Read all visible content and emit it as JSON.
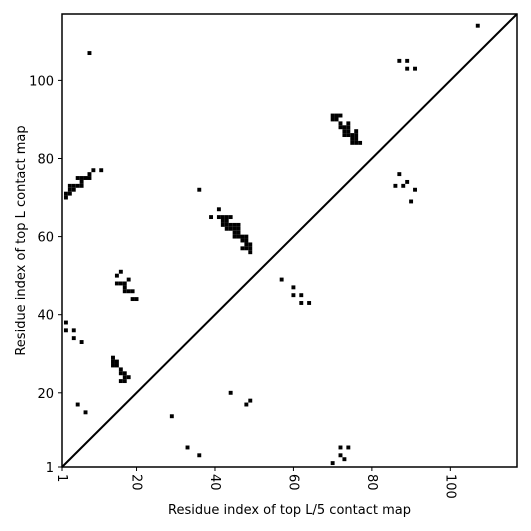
{
  "chart_data": {
    "type": "scatter",
    "xlabel": "Residue index of top L/5 contact map",
    "ylabel": "Residue index of top L contact map",
    "xlim": [
      1,
      117
    ],
    "ylim": [
      1,
      117
    ],
    "xticks": [
      1,
      20,
      40,
      60,
      80,
      100
    ],
    "xtick_labels": [
      "1",
      "20",
      "40",
      "60",
      "80",
      "100"
    ],
    "yticks": [
      1,
      20,
      40,
      60,
      80,
      100
    ],
    "ytick_labels": [
      "1",
      "20",
      "40",
      "60",
      "80",
      "100"
    ],
    "diagonal_line": true,
    "marker": "square",
    "marker_color": "#000000",
    "points": [
      [
        107,
        114
      ],
      [
        8,
        107
      ],
      [
        87,
        105
      ],
      [
        89,
        105
      ],
      [
        89,
        103
      ],
      [
        91,
        103
      ],
      [
        9,
        77
      ],
      [
        11,
        77
      ],
      [
        8,
        76
      ],
      [
        8,
        75
      ],
      [
        7,
        75
      ],
      [
        6,
        75
      ],
      [
        5,
        75
      ],
      [
        6,
        74
      ],
      [
        6,
        73
      ],
      [
        5,
        73
      ],
      [
        4,
        73
      ],
      [
        3,
        73
      ],
      [
        4,
        72
      ],
      [
        3,
        72
      ],
      [
        2,
        71
      ],
      [
        3,
        71
      ],
      [
        2,
        70
      ],
      [
        36,
        72
      ],
      [
        70,
        91
      ],
      [
        71,
        91
      ],
      [
        72,
        91
      ],
      [
        70,
        90
      ],
      [
        71,
        90
      ],
      [
        72,
        89
      ],
      [
        74,
        89
      ],
      [
        72,
        88
      ],
      [
        73,
        88
      ],
      [
        74,
        88
      ],
      [
        73,
        87
      ],
      [
        74,
        87
      ],
      [
        76,
        87
      ],
      [
        73,
        86
      ],
      [
        74,
        86
      ],
      [
        75,
        86
      ],
      [
        76,
        86
      ],
      [
        75,
        85
      ],
      [
        76,
        85
      ],
      [
        75,
        84
      ],
      [
        76,
        84
      ],
      [
        77,
        84
      ],
      [
        87,
        76
      ],
      [
        89,
        74
      ],
      [
        86,
        73
      ],
      [
        88,
        73
      ],
      [
        91,
        72
      ],
      [
        90,
        69
      ],
      [
        41,
        67
      ],
      [
        39,
        65
      ],
      [
        41,
        65
      ],
      [
        42,
        65
      ],
      [
        43,
        65
      ],
      [
        44,
        65
      ],
      [
        42,
        64
      ],
      [
        43,
        64
      ],
      [
        42,
        63
      ],
      [
        43,
        63
      ],
      [
        44,
        63
      ],
      [
        45,
        63
      ],
      [
        46,
        63
      ],
      [
        43,
        62
      ],
      [
        44,
        62
      ],
      [
        45,
        62
      ],
      [
        46,
        62
      ],
      [
        45,
        61
      ],
      [
        46,
        61
      ],
      [
        45,
        60
      ],
      [
        46,
        60
      ],
      [
        47,
        60
      ],
      [
        48,
        60
      ],
      [
        47,
        59
      ],
      [
        48,
        59
      ],
      [
        48,
        58
      ],
      [
        49,
        58
      ],
      [
        47,
        57
      ],
      [
        48,
        57
      ],
      [
        49,
        57
      ],
      [
        49,
        56
      ],
      [
        16,
        51
      ],
      [
        15,
        50
      ],
      [
        18,
        49
      ],
      [
        15,
        48
      ],
      [
        16,
        48
      ],
      [
        17,
        48
      ],
      [
        17,
        47
      ],
      [
        17,
        46
      ],
      [
        18,
        46
      ],
      [
        19,
        46
      ],
      [
        19,
        44
      ],
      [
        20,
        44
      ],
      [
        57,
        49
      ],
      [
        60,
        47
      ],
      [
        60,
        45
      ],
      [
        62,
        45
      ],
      [
        62,
        43
      ],
      [
        64,
        43
      ],
      [
        2,
        38
      ],
      [
        2,
        36
      ],
      [
        4,
        36
      ],
      [
        4,
        34
      ],
      [
        6,
        33
      ],
      [
        14,
        29
      ],
      [
        14,
        28
      ],
      [
        15,
        28
      ],
      [
        14,
        27
      ],
      [
        15,
        27
      ],
      [
        16,
        26
      ],
      [
        16,
        25
      ],
      [
        17,
        25
      ],
      [
        17,
        24
      ],
      [
        18,
        24
      ],
      [
        16,
        23
      ],
      [
        17,
        23
      ],
      [
        44,
        20
      ],
      [
        49,
        18
      ],
      [
        48,
        17
      ],
      [
        5,
        17
      ],
      [
        7,
        15
      ],
      [
        29,
        14
      ],
      [
        33,
        6
      ],
      [
        72,
        6
      ],
      [
        74,
        6
      ],
      [
        36,
        4
      ],
      [
        72,
        4
      ],
      [
        73,
        3
      ],
      [
        70,
        2
      ]
    ]
  }
}
